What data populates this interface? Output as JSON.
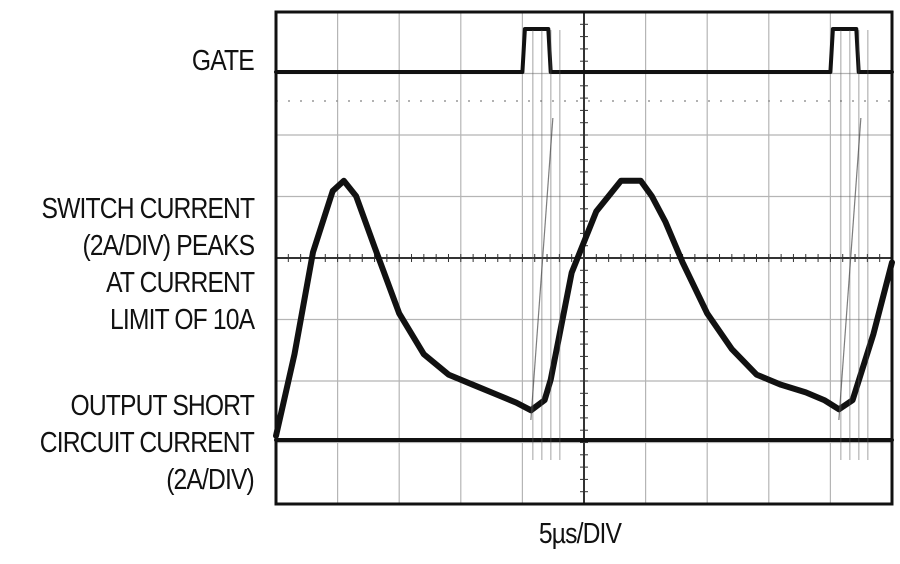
{
  "chart_data": {
    "type": "line",
    "x_unit": "µs",
    "x_divisions": 10,
    "y_divisions": 8,
    "grid": true,
    "xlabel": "5µs/DIV",
    "trace_labels": [
      {
        "id": "gate",
        "lines": [
          "GATE"
        ]
      },
      {
        "id": "switch",
        "lines": [
          "SWITCH CURRENT",
          "(2A/DIV) PEAKS",
          "AT CURRENT",
          "LIMIT OF 10A"
        ]
      },
      {
        "id": "output",
        "lines": [
          "OUTPUT SHORT",
          "CIRCUIT CURRENT",
          "(2A/DIV)"
        ]
      }
    ],
    "series": [
      {
        "id": "gate",
        "x": [
          0,
          20.0,
          20.2,
          22.1,
          22.3,
          45.0,
          45.2,
          47.1,
          47.3,
          50
        ],
        "y": [
          0,
          0,
          1,
          1,
          0,
          0,
          1,
          1,
          0,
          0
        ]
      },
      {
        "id": "switch",
        "x": [
          0,
          1.5,
          3,
          4.6,
          5.5,
          6.5,
          8,
          10,
          12,
          14,
          16,
          18,
          19.5,
          20.7,
          21.8,
          22.3,
          24,
          26,
          28,
          29.6,
          30.5,
          31.6,
          33,
          35,
          37,
          39,
          41,
          43,
          44.5,
          45.7,
          46.8,
          48.5,
          50
        ],
        "y": [
          0.2,
          1.8,
          3.8,
          5.0,
          5.2,
          4.9,
          3.9,
          2.6,
          1.8,
          1.4,
          1.2,
          1.0,
          0.85,
          0.7,
          0.9,
          1.3,
          3.4,
          4.6,
          5.2,
          5.2,
          4.9,
          4.4,
          3.6,
          2.6,
          1.9,
          1.4,
          1.2,
          1.05,
          0.9,
          0.72,
          0.9,
          2.2,
          3.6
        ]
      },
      {
        "id": "output",
        "x": [
          0,
          19.8,
          20.2,
          22.2,
          22.4,
          44.8,
          45.2,
          47.2,
          47.4,
          50
        ],
        "y": [
          0,
          0,
          0,
          0,
          0,
          0,
          0,
          0,
          0,
          0
        ]
      }
    ]
  }
}
